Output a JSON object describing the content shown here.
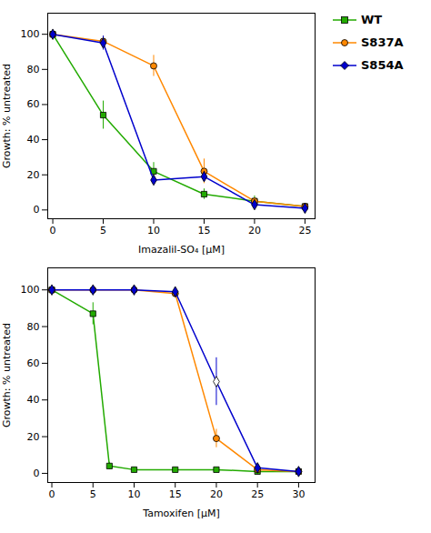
{
  "chart_data": [
    {
      "type": "line",
      "xlabel": "Imazalil-SO₄ [μM]",
      "ylabel": "Growth: % untreated",
      "xlim": [
        -0.5,
        26
      ],
      "ylim": [
        -5,
        112
      ],
      "xticks": [
        0,
        5,
        10,
        15,
        20,
        25
      ],
      "yticks": [
        0,
        20,
        40,
        60,
        80,
        100
      ],
      "legend": "right",
      "series": [
        {
          "name": "WT",
          "color": "#22aa00",
          "marker": "square",
          "x": [
            0,
            5,
            10,
            15,
            20,
            25
          ],
          "values": [
            100,
            54,
            22,
            9,
            5,
            2
          ],
          "yerr": [
            0,
            8,
            5,
            3,
            3,
            1
          ]
        },
        {
          "name": "S837A",
          "color": "#ff8800",
          "marker": "circle",
          "x": [
            0,
            5,
            10,
            15,
            20,
            25
          ],
          "values": [
            100,
            96,
            82,
            22,
            5,
            2
          ],
          "yerr": [
            0,
            3,
            6,
            7,
            2,
            1
          ]
        },
        {
          "name": "S854A",
          "color": "#0000cc",
          "marker": "diamond",
          "x": [
            0,
            5,
            10,
            15,
            20,
            25
          ],
          "values": [
            100,
            95,
            17,
            19,
            3,
            1
          ],
          "yerr": [
            0,
            4,
            2,
            3,
            2,
            1
          ]
        }
      ]
    },
    {
      "type": "line",
      "xlabel": "Tamoxifen [μM]",
      "ylabel": "Growth: % untreated",
      "xlim": [
        -0.5,
        32
      ],
      "ylim": [
        -5,
        112
      ],
      "xticks": [
        0,
        5,
        10,
        15,
        20,
        25,
        30
      ],
      "yticks": [
        0,
        20,
        40,
        60,
        80,
        100
      ],
      "series": [
        {
          "name": "WT",
          "color": "#22aa00",
          "marker": "square",
          "x": [
            0,
            5,
            7,
            10,
            15,
            20,
            25,
            30
          ],
          "values": [
            100,
            87,
            4,
            2,
            2,
            2,
            1,
            1
          ],
          "yerr": [
            0,
            6,
            2,
            1,
            1,
            1,
            1,
            1
          ]
        },
        {
          "name": "S837A",
          "color": "#ff8800",
          "marker": "circle",
          "x": [
            0,
            5,
            10,
            15,
            20,
            25,
            30
          ],
          "values": [
            100,
            100,
            100,
            98,
            19,
            2,
            1
          ],
          "yerr": [
            0,
            1,
            1,
            2,
            5,
            1,
            1
          ]
        },
        {
          "name": "S854A",
          "color": "#0000cc",
          "marker": "diamond",
          "x": [
            0,
            5,
            10,
            15,
            20,
            25,
            30
          ],
          "values": [
            100,
            100,
            100,
            99,
            50,
            3,
            1
          ],
          "yerr": [
            0,
            1,
            1,
            2,
            13,
            2,
            1
          ],
          "hollow_x": [
            20
          ]
        }
      ]
    }
  ]
}
